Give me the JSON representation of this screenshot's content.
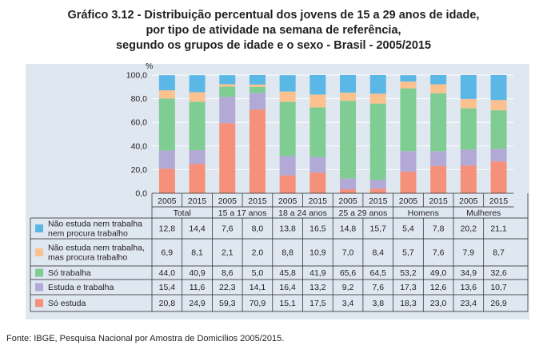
{
  "title": {
    "line1": "Gráfico 3.12 - Distribuição percentual dos jovens de 15 a 29 anos de idade,",
    "line2": "por tipo de atividade na semana de referência,",
    "line3": "segundo os grupos de idade e o sexo - Brasil - 2005/2015"
  },
  "source": "Fonte: IBGE, Pesquisa Nacional por Amostra de Domicílios 2005/2015.",
  "chart_data": {
    "type": "bar",
    "stacked": true,
    "percent_stacked": true,
    "ylabel": "%",
    "ylim": [
      0,
      100
    ],
    "yticks": [
      "0,0",
      "20,0",
      "40,0",
      "60,0",
      "80,0",
      "100,0"
    ],
    "grid": true,
    "legend": "table-bottom",
    "groups": [
      "Total",
      "15 a 17 anos",
      "18 a 24 anos",
      "25 a 29 anos",
      "Homens",
      "Mulheres"
    ],
    "years": [
      "2005",
      "2015"
    ],
    "categories": [
      "Total 2005",
      "Total 2015",
      "15 a 17 anos 2005",
      "15 a 17 anos 2015",
      "18 a 24 anos 2005",
      "18 a 24 anos 2015",
      "25 a 29 anos 2005",
      "25 a 29 anos 2015",
      "Homens 2005",
      "Homens 2015",
      "Mulheres 2005",
      "Mulheres 2015"
    ],
    "series": [
      {
        "name": "Só estuda",
        "color": "#f5917a",
        "values": [
          20.8,
          24.9,
          59.3,
          70.9,
          15.1,
          17.5,
          3.4,
          3.8,
          18.3,
          23.0,
          23.4,
          26.9
        ],
        "labels": [
          "20,8",
          "24,9",
          "59,3",
          "70,9",
          "15,1",
          "17,5",
          "3,4",
          "3,8",
          "18,3",
          "23,0",
          "23,4",
          "26,9"
        ]
      },
      {
        "name": "Estuda e trabalha",
        "color": "#b3a9d6",
        "values": [
          15.4,
          11.6,
          22.3,
          14.1,
          16.4,
          13.2,
          9.2,
          7.6,
          17.3,
          12.6,
          13.6,
          10.7
        ],
        "labels": [
          "15,4",
          "11,6",
          "22,3",
          "14,1",
          "16,4",
          "13,2",
          "9,2",
          "7,6",
          "17,3",
          "12,6",
          "13,6",
          "10,7"
        ]
      },
      {
        "name": "Só trabalha",
        "color": "#7fcd93",
        "values": [
          44.0,
          40.9,
          8.6,
          5.0,
          45.8,
          41.9,
          65.6,
          64.5,
          53.2,
          49.0,
          34.9,
          32.6
        ],
        "labels": [
          "44,0",
          "40,9",
          "8,6",
          "5,0",
          "45,8",
          "41,9",
          "65,6",
          "64,5",
          "53,2",
          "49,0",
          "34,9",
          "32,6"
        ]
      },
      {
        "name": "Não estuda nem trabalha, mas procura trabalho",
        "name_lines": [
          "Não estuda nem trabalha,",
          "mas procura trabalho"
        ],
        "color": "#fbc28f",
        "values": [
          6.9,
          8.1,
          2.1,
          2.0,
          8.8,
          10.9,
          7.0,
          8.4,
          5.7,
          7.6,
          7.9,
          8.7
        ],
        "labels": [
          "6,9",
          "8,1",
          "2,1",
          "2,0",
          "8,8",
          "10,9",
          "7,0",
          "8,4",
          "5,7",
          "7,6",
          "7,9",
          "8,7"
        ]
      },
      {
        "name": "Não estuda nem trabalha nem procura trabalho",
        "name_lines": [
          "Não estuda nem trabalha",
          "nem procura trabalho"
        ],
        "color": "#5bb8e6",
        "values": [
          12.8,
          14.4,
          7.6,
          8.0,
          13.8,
          16.5,
          14.8,
          15.7,
          5.4,
          7.8,
          20.2,
          21.1
        ],
        "labels": [
          "12,8",
          "14,4",
          "7,6",
          "8,0",
          "13,8",
          "16,5",
          "14,8",
          "15,7",
          "5,4",
          "7,8",
          "20,2",
          "21,1"
        ]
      }
    ]
  }
}
